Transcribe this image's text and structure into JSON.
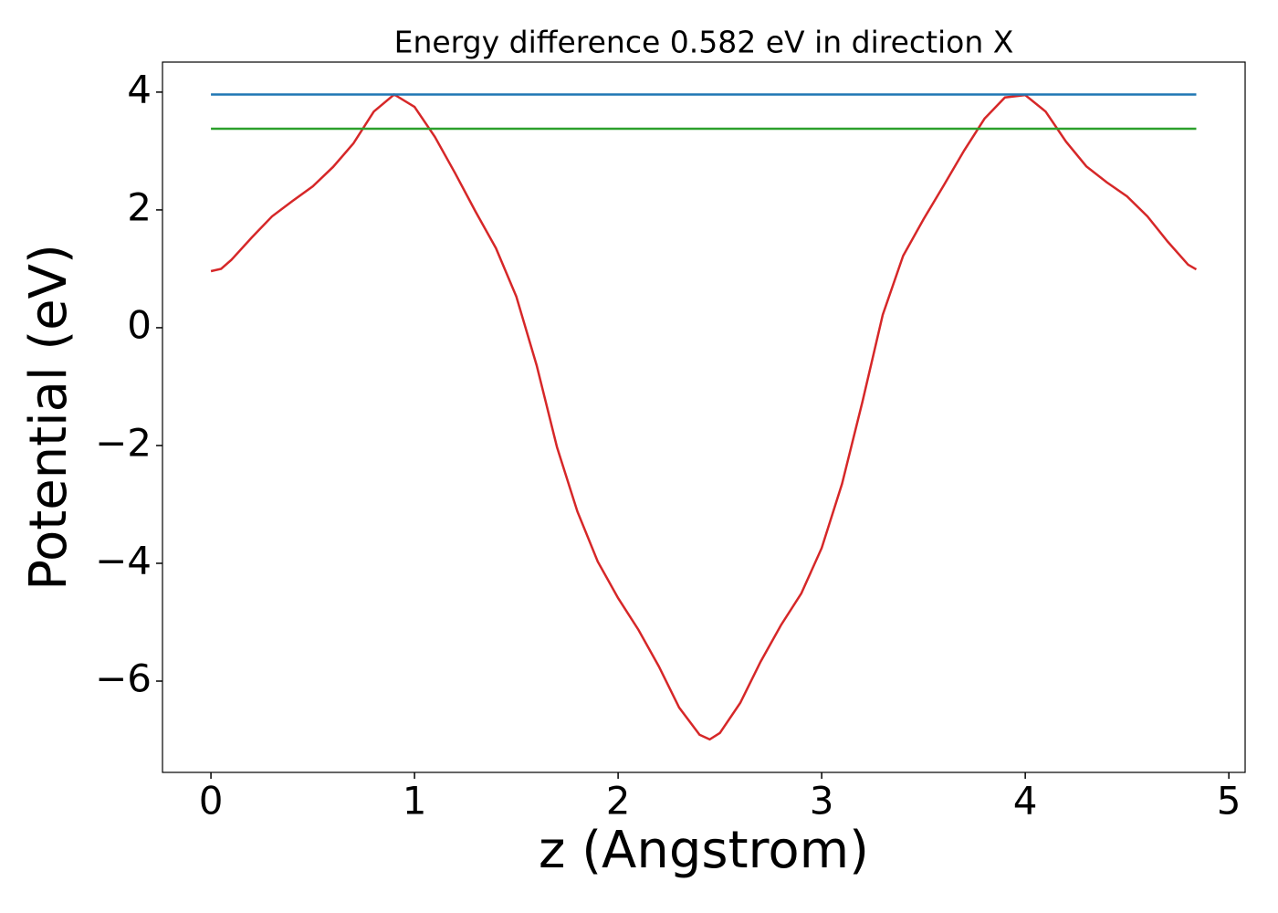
{
  "chart_data": {
    "type": "line",
    "title": "Energy difference 0.582 eV in direction X",
    "xlabel": "z (Angstrom)",
    "ylabel": "Potential (eV)",
    "xlim": [
      -0.238,
      5.08
    ],
    "ylim": [
      -7.55,
      4.51
    ],
    "xticks": [
      0,
      1,
      2,
      3,
      4,
      5
    ],
    "yticks": [
      {
        "value": -6,
        "label": "−6"
      },
      {
        "value": -4,
        "label": "−4"
      },
      {
        "value": -2,
        "label": "−2"
      },
      0,
      2,
      4
    ],
    "series": [
      {
        "color": "#d62728",
        "x": [
          0,
          0.05,
          0.1,
          0.2,
          0.3,
          0.4,
          0.5,
          0.6,
          0.7,
          0.8,
          0.9,
          1.0,
          1.1,
          1.2,
          1.3,
          1.4,
          1.5,
          1.6,
          1.7,
          1.8,
          1.9,
          2.0,
          2.1,
          2.2,
          2.3,
          2.4,
          2.45,
          2.5,
          2.6,
          2.7,
          2.8,
          2.9,
          3.0,
          3.1,
          3.2,
          3.3,
          3.4,
          3.5,
          3.6,
          3.7,
          3.8,
          3.9,
          4.0,
          4.1,
          4.2,
          4.3,
          4.4,
          4.5,
          4.6,
          4.7,
          4.8,
          4.84
        ],
        "values": [
          0.96,
          1.0,
          1.15,
          1.53,
          1.89,
          2.15,
          2.4,
          2.73,
          3.13,
          3.67,
          3.96,
          3.75,
          3.24,
          2.62,
          1.97,
          1.35,
          0.53,
          -0.64,
          -2.03,
          -3.12,
          -3.97,
          -4.59,
          -5.13,
          -5.75,
          -6.45,
          -6.91,
          -6.99,
          -6.88,
          -6.37,
          -5.67,
          -5.05,
          -4.51,
          -3.74,
          -2.65,
          -1.26,
          0.22,
          1.22,
          1.84,
          2.42,
          3.01,
          3.55,
          3.91,
          3.95,
          3.67,
          3.16,
          2.74,
          2.47,
          2.23,
          1.89,
          1.46,
          1.07,
          0.99
        ]
      },
      {
        "color": "#1f77b4",
        "x": [
          0,
          4.84
        ],
        "values": [
          3.96,
          3.96
        ]
      },
      {
        "color": "#2ca02c",
        "x": [
          0,
          4.84
        ],
        "values": [
          3.378,
          3.378
        ]
      }
    ]
  }
}
